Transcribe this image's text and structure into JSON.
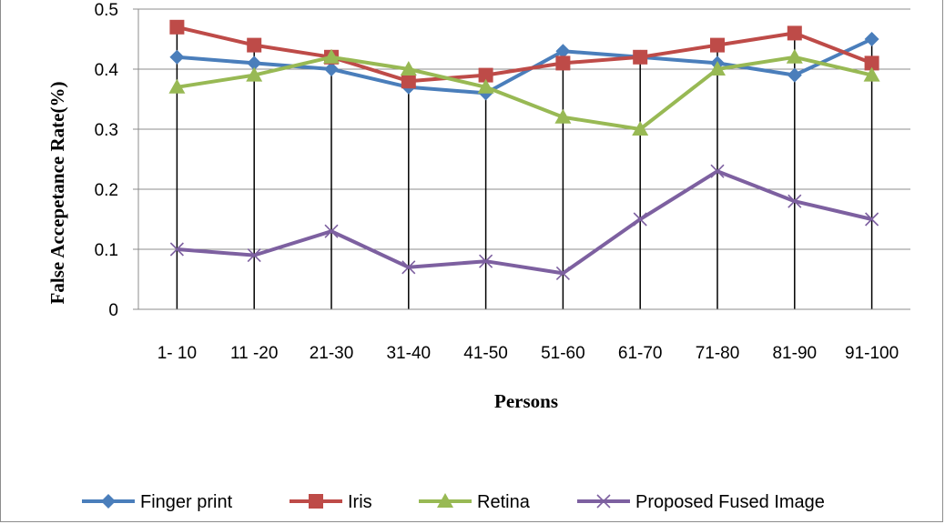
{
  "chart_data": {
    "type": "line",
    "xlabel": "Persons",
    "ylabel": "False Accepetance Rate(%)",
    "ylim": [
      0,
      0.5
    ],
    "yticks": [
      "0",
      "0.1",
      "0.2",
      "0.3",
      "0.4",
      "0.5"
    ],
    "grid": "horizontal",
    "legend_position": "bottom",
    "drop_lines": true,
    "categories": [
      "1- 10",
      "11 -20",
      "21-30",
      "31-40",
      "41-50",
      "51-60",
      "61-70",
      "71-80",
      "81-90",
      "91-100"
    ],
    "series": [
      {
        "name": "Finger print",
        "color": "#4a7ebb",
        "marker": "diamond",
        "values": [
          0.42,
          0.41,
          0.4,
          0.37,
          0.36,
          0.43,
          0.42,
          0.41,
          0.39,
          0.45
        ]
      },
      {
        "name": "Iris",
        "color": "#be4b48",
        "marker": "square",
        "values": [
          0.47,
          0.44,
          0.42,
          0.38,
          0.39,
          0.41,
          0.42,
          0.44,
          0.46,
          0.41
        ]
      },
      {
        "name": "Retina",
        "color": "#98b954",
        "marker": "triangle",
        "values": [
          0.37,
          0.39,
          0.42,
          0.4,
          0.37,
          0.32,
          0.3,
          0.4,
          0.42,
          0.39
        ]
      },
      {
        "name": "Proposed Fused Image",
        "color": "#7d60a0",
        "marker": "x",
        "values": [
          0.1,
          0.09,
          0.13,
          0.07,
          0.08,
          0.06,
          0.15,
          0.23,
          0.18,
          0.15
        ]
      }
    ]
  }
}
